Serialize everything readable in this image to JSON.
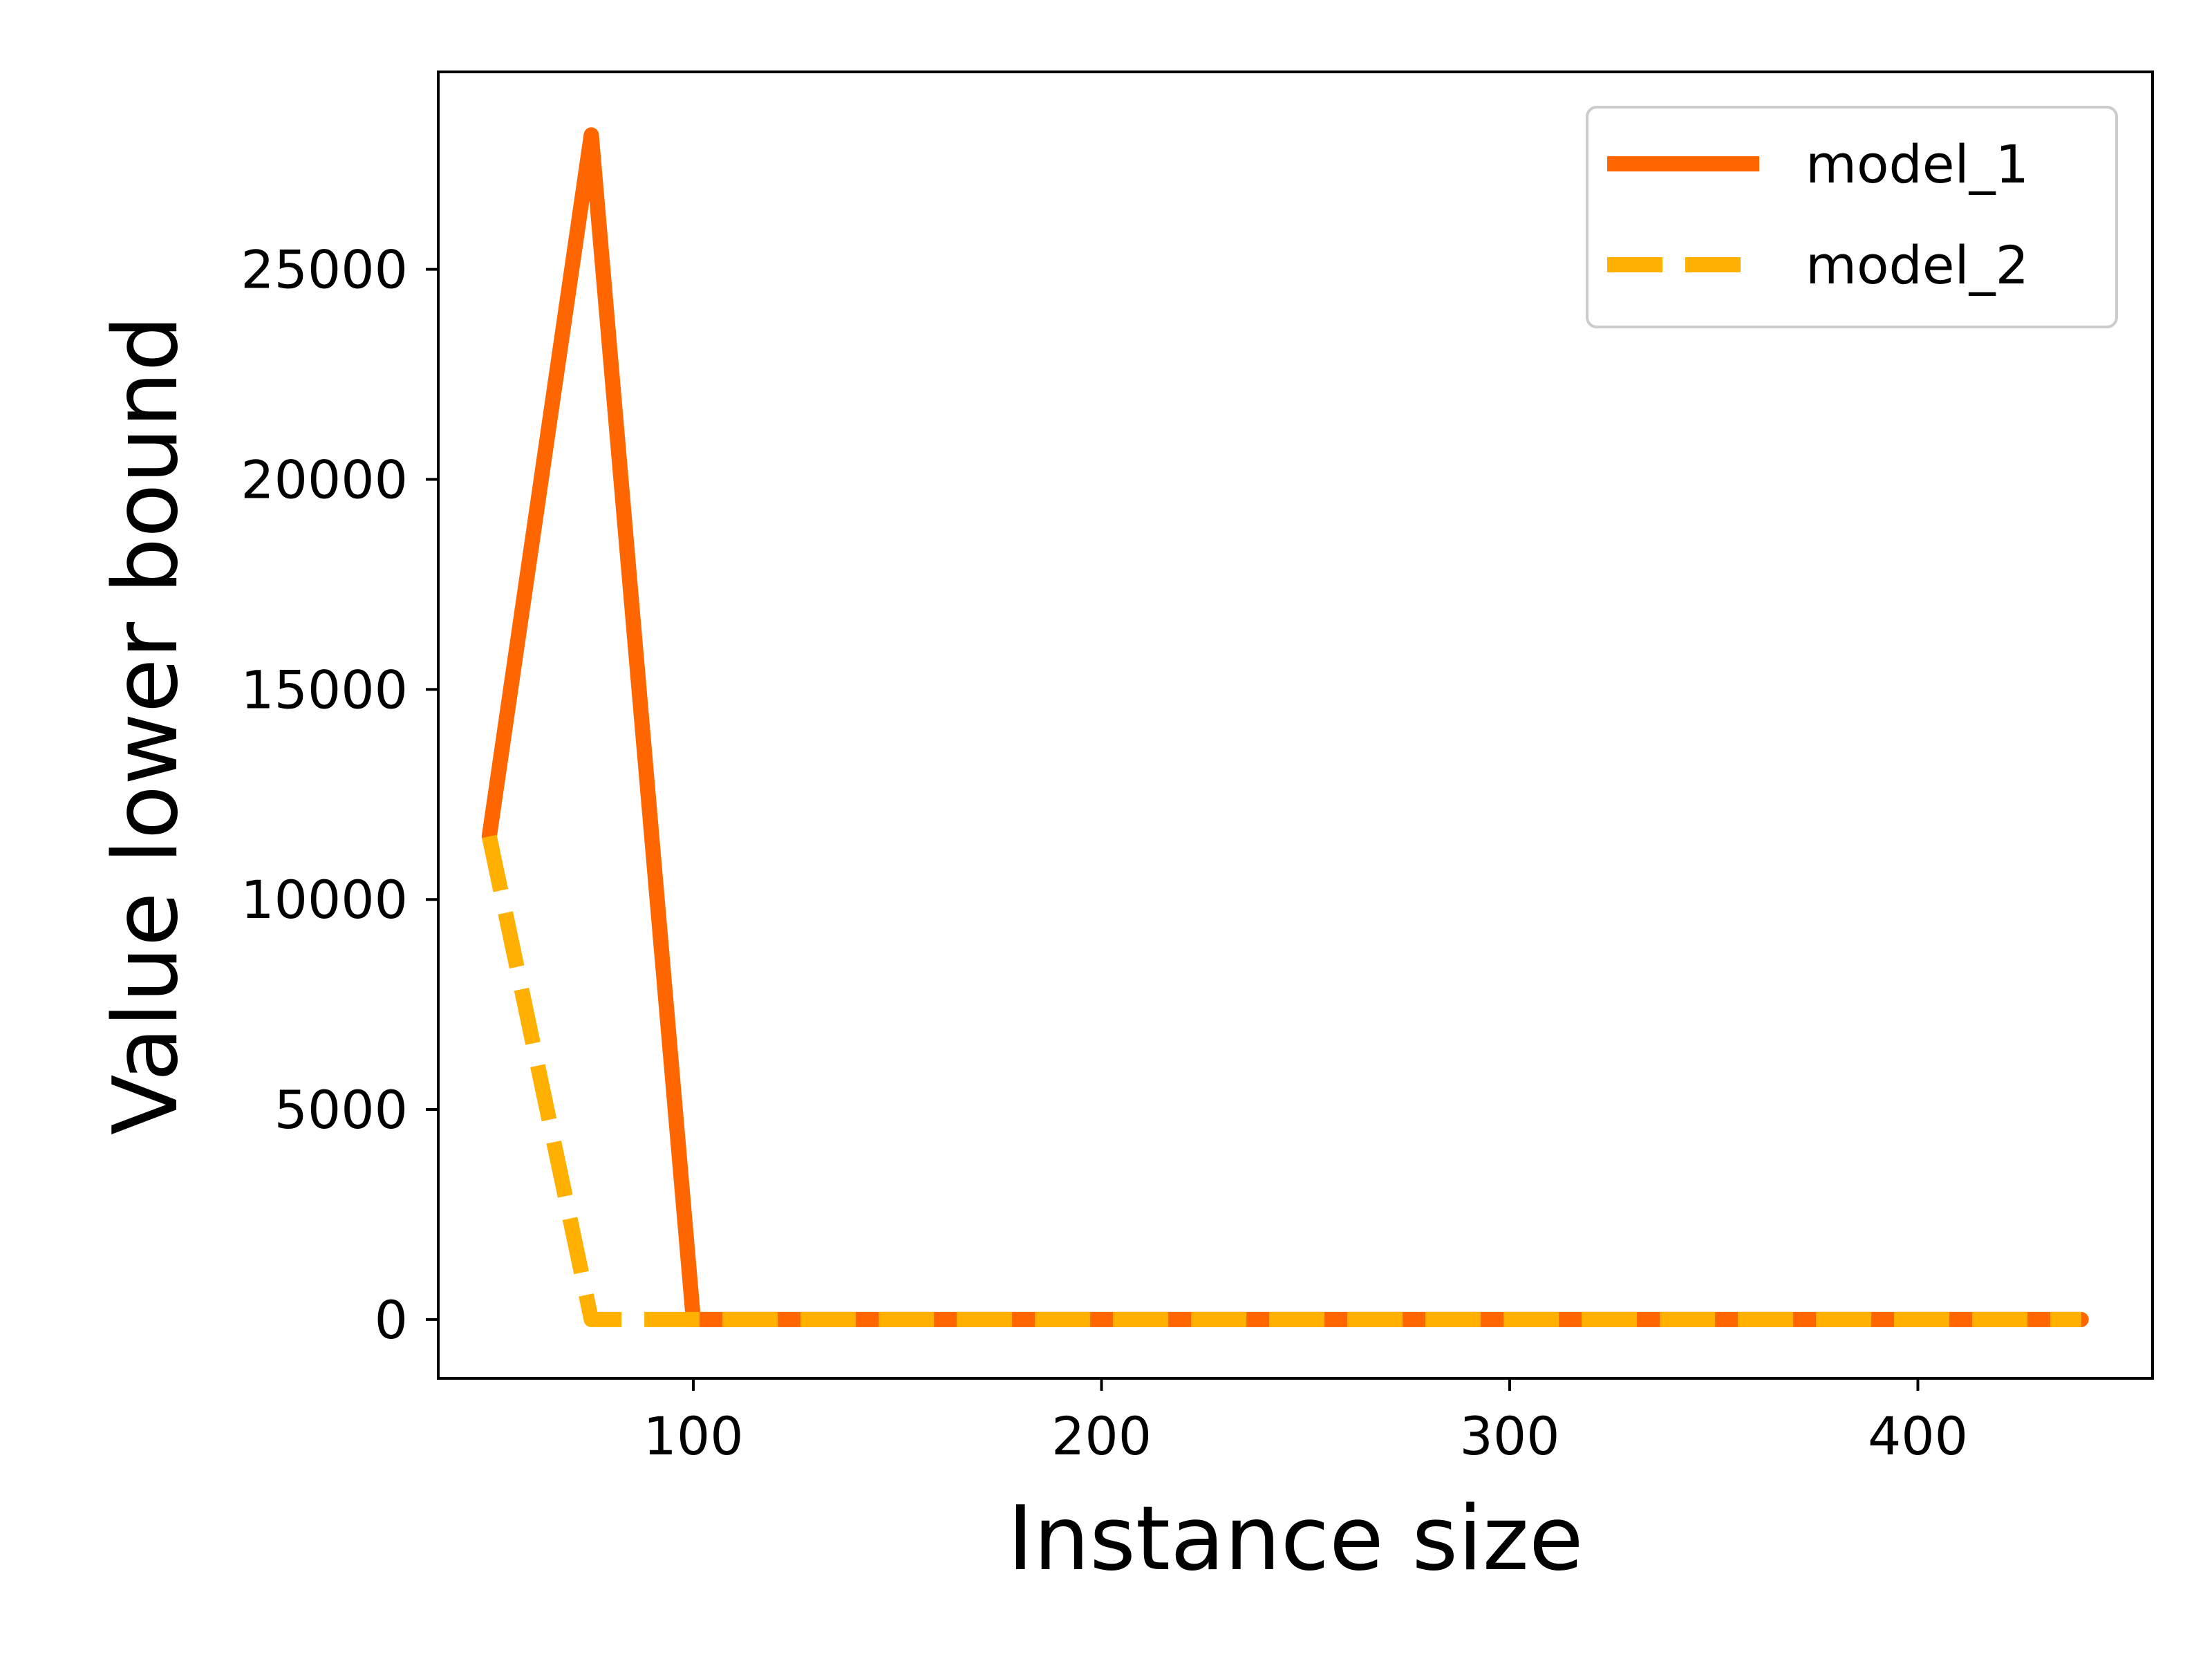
{
  "chart_data": {
    "type": "line",
    "title": "",
    "xlabel": "Instance size",
    "ylabel": "Value lower bound",
    "xlim": [
      37.5,
      457.5
    ],
    "ylim": [
      -1400,
      29700
    ],
    "xticks": [
      100,
      200,
      300,
      400
    ],
    "yticks": [
      0,
      5000,
      10000,
      15000,
      20000,
      25000
    ],
    "grid": false,
    "legend_position": "top-right",
    "series": [
      {
        "name": "model_1",
        "color": "#FF6600",
        "style": "solid",
        "x": [
          50,
          75,
          100,
          125,
          150,
          175,
          200,
          225,
          250,
          275,
          300,
          325,
          350,
          375,
          400,
          425,
          440
        ],
        "y": [
          11500,
          28200,
          0,
          0,
          0,
          0,
          0,
          0,
          0,
          0,
          0,
          0,
          0,
          0,
          0,
          0,
          0
        ]
      },
      {
        "name": "model_2",
        "color": "#FFB000",
        "style": "dashed",
        "x": [
          50,
          75,
          100,
          125,
          150,
          175,
          200,
          225,
          250,
          275,
          300,
          325,
          350,
          375,
          400,
          425,
          440
        ],
        "y": [
          11500,
          0,
          0,
          0,
          0,
          0,
          0,
          0,
          0,
          0,
          0,
          0,
          0,
          0,
          0,
          0,
          0
        ]
      }
    ]
  }
}
